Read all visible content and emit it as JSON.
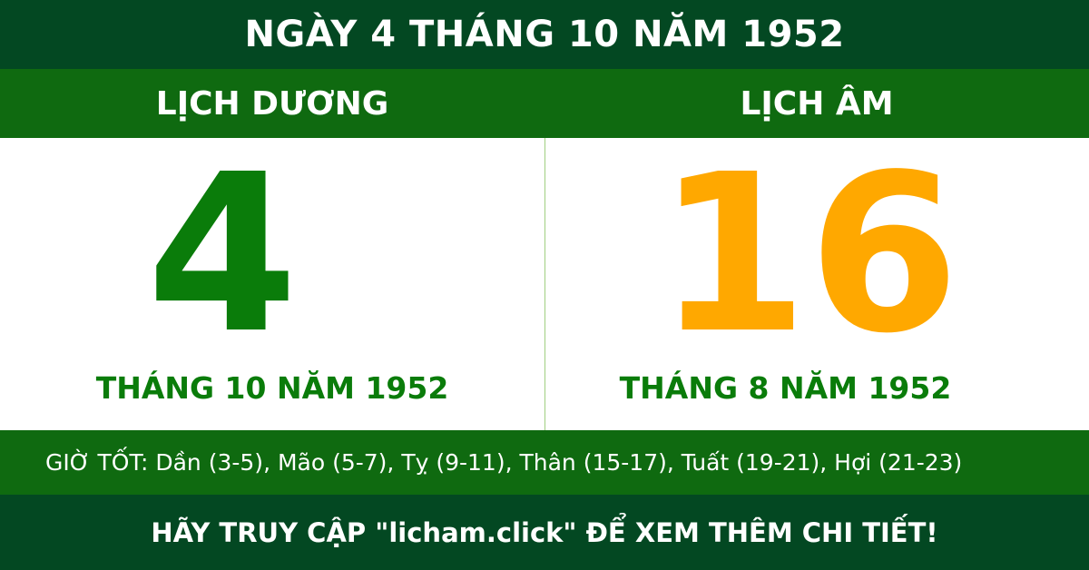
{
  "title": "NGÀY 4 THÁNG 10 NĂM 1952",
  "solar": {
    "label": "LỊCH DƯƠNG",
    "day": "4",
    "month_year": "THÁNG 10 NĂM 1952"
  },
  "lunar": {
    "label": "LỊCH ÂM",
    "day": "16",
    "month_year": "THÁNG 8 NĂM 1952"
  },
  "good_hours": "GIỜ TỐT: Dần (3-5), Mão (5-7), Tỵ (9-11), Thân (15-17), Tuất (19-21), Hợi (21-23)",
  "footer": "HÃY TRUY CẬP \"licham.click\" ĐỂ XEM THÊM CHI TIẾT!",
  "colors": {
    "dark_green": "#034822",
    "green": "#0f6a10",
    "solar_day": "#0a7c0a",
    "lunar_day": "#ffa800"
  }
}
